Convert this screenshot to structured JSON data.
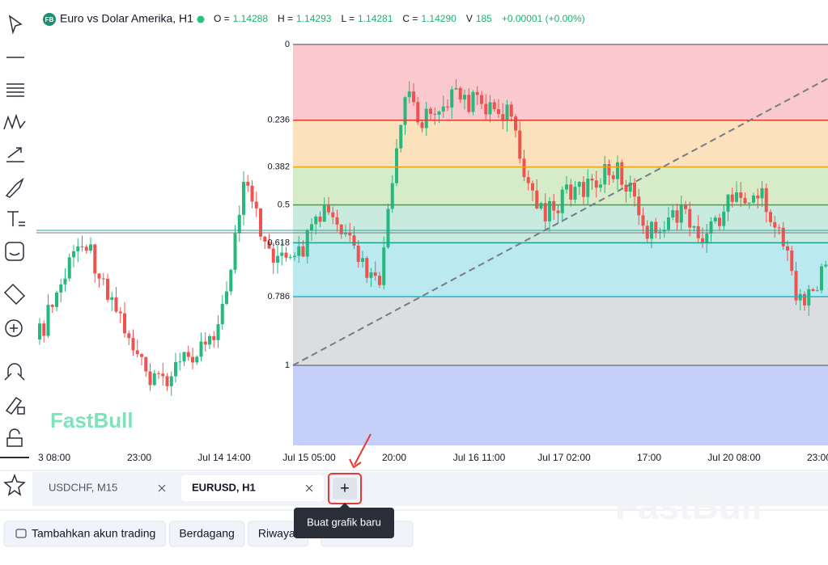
{
  "header": {
    "badge": "FB",
    "symbol": "Euro vs Dolar Amerika, H1",
    "stats": [
      {
        "label": "O =",
        "value": "1.14288"
      },
      {
        "label": "H =",
        "value": "1.14293"
      },
      {
        "label": "L =",
        "value": "1.14281"
      },
      {
        "label": "C =",
        "value": "1.14290"
      },
      {
        "label": "V",
        "value": "185"
      }
    ],
    "change": "+0.00001 (+0.00%)"
  },
  "fibonacci": {
    "levels": [
      {
        "value": 0,
        "color": "#787b86",
        "fill": "#f9c9cd"
      },
      {
        "value": 0.236,
        "color": "#e53935",
        "fill": "#fce1bd"
      },
      {
        "value": 0.382,
        "color": "#f0a010",
        "fill": "#d6ecc9"
      },
      {
        "value": 0.5,
        "color": "#43a047",
        "fill": "#c9ebdf"
      },
      {
        "value": 0.618,
        "color": "#1e9e8f",
        "fill": "#bae9f0"
      },
      {
        "value": 0.786,
        "color": "#22b4c8",
        "fill": "#dcdde1"
      },
      {
        "value": 1,
        "color": "#787b86",
        "fill": "#c5cffa"
      }
    ]
  },
  "x_axis": {
    "labels": [
      "3 08:00",
      "23:00",
      "Jul 14 14:00",
      "Jul 15 05:00",
      "20:00",
      "Jul 16 11:00",
      "Jul 17 02:00",
      "17:00",
      "Jul 20 08:00",
      "23:00"
    ]
  },
  "watermark": "FastBull",
  "tabs": [
    {
      "label": "USDCHF, M15",
      "active": false
    },
    {
      "label": "EURUSD, H1",
      "active": true
    }
  ],
  "new_tab_button": "+",
  "tooltip": "Buat grafik baru",
  "footer_buttons": [
    "Tambahkan akun trading",
    "Berdagang",
    "Riwayat"
  ]
}
